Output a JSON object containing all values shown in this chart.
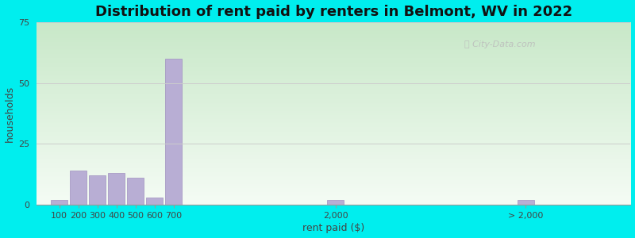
{
  "title": "Distribution of rent paid by renters in Belmont, WV in 2022",
  "xlabel": "rent paid ($)",
  "ylabel": "households",
  "bar_color": "#b8aed4",
  "bar_edge_color": "#a090c0",
  "outer_bg": "#00eeee",
  "ylim": [
    0,
    75
  ],
  "yticks": [
    0,
    25,
    50,
    75
  ],
  "categories": [
    "100",
    "200",
    "300",
    "400",
    "500",
    "600",
    "700",
    "2,000",
    "> 2,000"
  ],
  "values": [
    2,
    14,
    12,
    13,
    11,
    3,
    60,
    2,
    2
  ],
  "bar_positions": [
    0.1,
    0.2,
    0.3,
    0.4,
    0.5,
    0.6,
    0.7,
    1.55,
    2.55
  ],
  "bar_width": 0.085,
  "xlim": [
    -0.02,
    3.1
  ],
  "title_fontsize": 13,
  "axis_label_fontsize": 9,
  "tick_fontsize": 8,
  "watermark_text": "City-Data.com",
  "grad_color_top": "#c8e8c8",
  "grad_color_bottom": "#eaf7ea",
  "grid_color": "#cccccc",
  "text_color": "#444444",
  "spine_color": "#999999"
}
